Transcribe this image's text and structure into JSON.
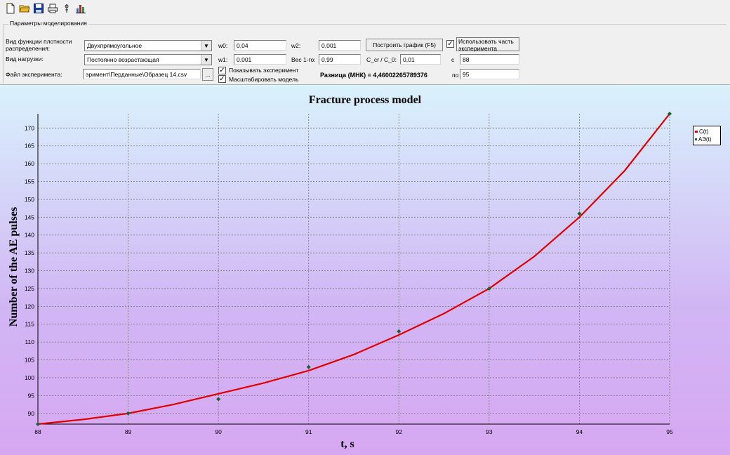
{
  "toolbar": {
    "buttons": [
      "new-file-icon",
      "open-folder-icon",
      "save-icon",
      "print-icon",
      "settings-icon",
      "chart-icon"
    ]
  },
  "panel": {
    "group_title": "Параметры моделирования",
    "density_label": "Вид функции плотности распределения:",
    "density_value": "Двухпрямоугольное",
    "load_label": "Вид нагрузки:",
    "load_value": "Постоянно возрастающая",
    "file_label": "Файл эксперимента:",
    "file_value": "эримент\\Перданные\\Образец 14.csv",
    "browse_label": "...",
    "w0_label": "w0:",
    "w0_value": "0,04",
    "w1_label": "w1:",
    "w1_value": "0,001",
    "w2_label": "w2:",
    "w2_value": "0,001",
    "weight_label": "Вес 1-го:",
    "weight_value": "0,99",
    "ccr_label": "C_cr / C_0:",
    "ccr_value": "0,01",
    "build_button": "Построить график (F5)",
    "use_part_label": "Использовать часть эксперимента",
    "use_part_checked": true,
    "c_label": "c",
    "c_value": "88",
    "po_label": "по",
    "po_value": "95",
    "show_exp_label": "Показывать эксперимент",
    "show_exp_checked": true,
    "scale_label": "Масштабировать модель",
    "scale_checked": true,
    "diff_text": "Разница (МНК) = 4,46002265789376"
  },
  "chart_data": {
    "type": "line",
    "title": "Fracture process model",
    "xlabel": "t, s",
    "ylabel": "Number of the AE pulses",
    "xlim": [
      88,
      95
    ],
    "ylim": [
      87,
      174
    ],
    "x_ticks": [
      88,
      89,
      90,
      91,
      92,
      93,
      94,
      95
    ],
    "y_ticks": [
      90,
      95,
      100,
      105,
      110,
      115,
      120,
      125,
      130,
      135,
      140,
      145,
      150,
      155,
      160,
      165,
      170
    ],
    "grid": true,
    "legend_position": "right",
    "series": [
      {
        "name": "C(t)",
        "color": "#e00000",
        "x": [
          88,
          88.5,
          89,
          89.5,
          90,
          90.5,
          91,
          91.5,
          92,
          92.5,
          93,
          93.5,
          94,
          94.5,
          95
        ],
        "y": [
          87,
          88.3,
          90,
          92.5,
          95.5,
          98.5,
          102,
          106.5,
          112,
          118,
          125,
          134,
          145,
          158,
          174
        ]
      },
      {
        "name": "АЭ(t)",
        "color": "#1a6030",
        "x": [
          88,
          89,
          90,
          91,
          92,
          93,
          94,
          95
        ],
        "y": [
          87,
          90,
          94,
          103,
          113,
          125,
          146,
          174
        ]
      }
    ]
  }
}
